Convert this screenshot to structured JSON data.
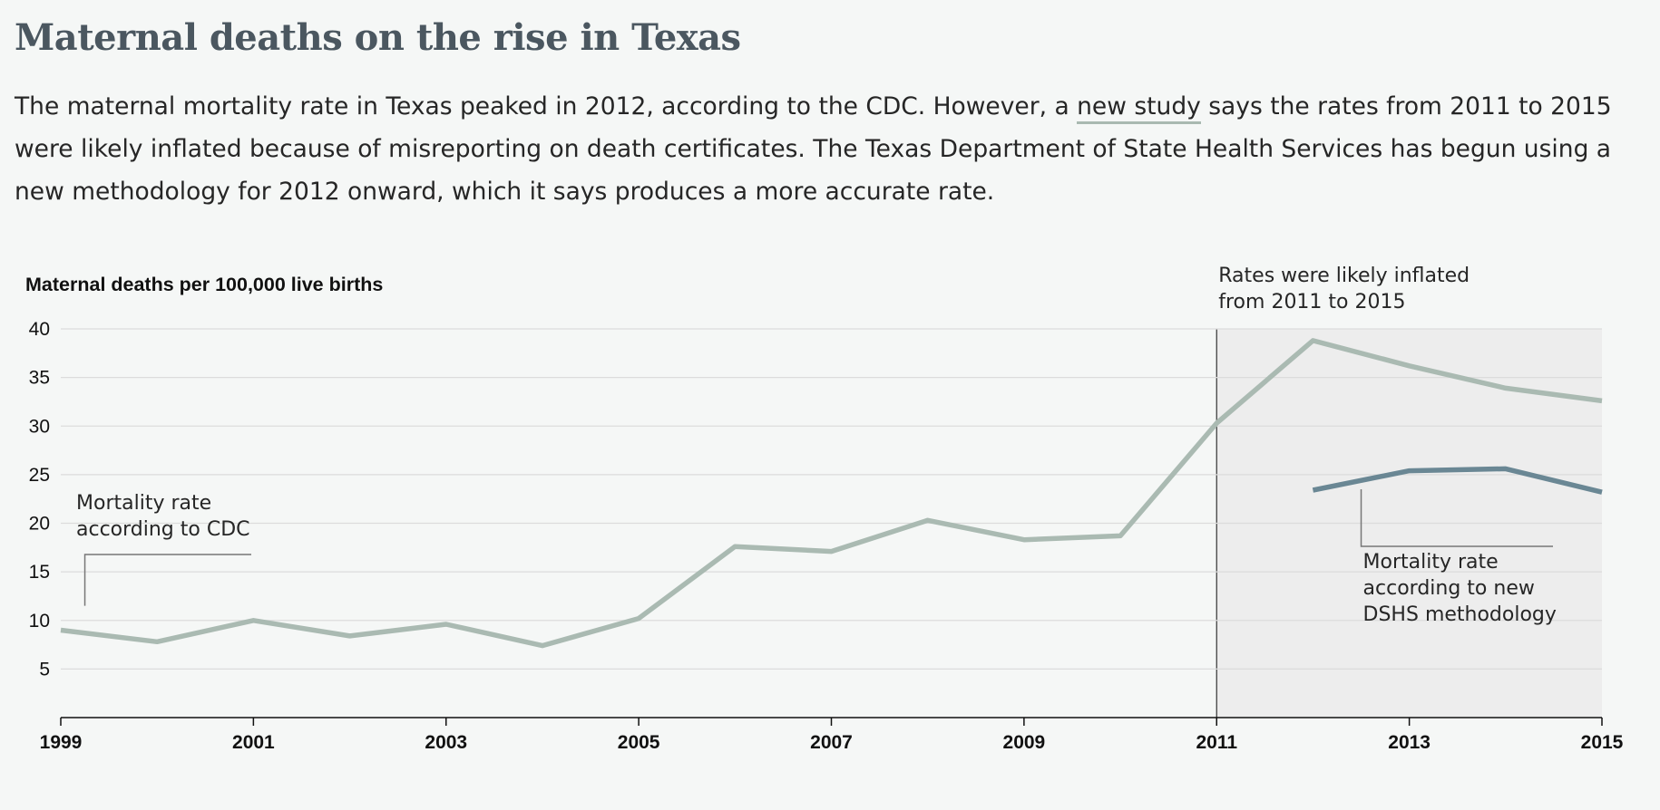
{
  "header": {
    "title": "Maternal deaths on the rise in Texas",
    "dek_before_link": "The maternal mortality rate in Texas peaked in 2012, according to the CDC. However, a ",
    "dek_link": "new study",
    "dek_after_link": " says the rates from 2011 to 2015 were likely inflated because of misreporting on death certificates. The Texas Department of State Health Services has begun using a new methodology for 2012 onward, which it says produces a more accurate rate."
  },
  "chart_data": {
    "type": "line",
    "ylabel": "Maternal deaths per 100,000 live births",
    "xlabel": "",
    "xlim": [
      1999,
      2015
    ],
    "ylim": [
      0,
      40
    ],
    "x_ticks": [
      1999,
      2001,
      2003,
      2005,
      2007,
      2009,
      2011,
      2013,
      2015
    ],
    "y_ticks": [
      5,
      10,
      15,
      20,
      25,
      30,
      35,
      40
    ],
    "grid": true,
    "series": [
      {
        "name": "Mortality rate according to CDC",
        "color": "#aabab2",
        "x": [
          1999,
          2000,
          2001,
          2002,
          2003,
          2004,
          2005,
          2006,
          2007,
          2008,
          2009,
          2010,
          2011,
          2012,
          2013,
          2014,
          2015
        ],
        "values": [
          9.0,
          7.8,
          10.0,
          8.4,
          9.6,
          7.4,
          10.2,
          17.6,
          17.1,
          20.3,
          18.3,
          18.7,
          30.3,
          38.8,
          36.2,
          33.9,
          32.6
        ]
      },
      {
        "name": "Mortality rate according to new DSHS methodology",
        "color": "#6a8794",
        "x": [
          2012,
          2013,
          2014,
          2015
        ],
        "values": [
          23.4,
          25.4,
          25.6,
          23.2
        ]
      }
    ],
    "highlight_region": {
      "x_start": 2011,
      "x_end": 2015,
      "color": "#ededed",
      "label_lines": [
        "Rates were likely inflated",
        "from 2011 to 2015"
      ]
    },
    "annotations": [
      {
        "label_lines": [
          "Mortality rate",
          "according to CDC"
        ],
        "x": 1999.25,
        "y": 11.5
      },
      {
        "label_lines": [
          "Mortality rate",
          "according to new",
          "DSHS methodology"
        ],
        "x": 2012.5,
        "y": 23.5
      }
    ]
  }
}
